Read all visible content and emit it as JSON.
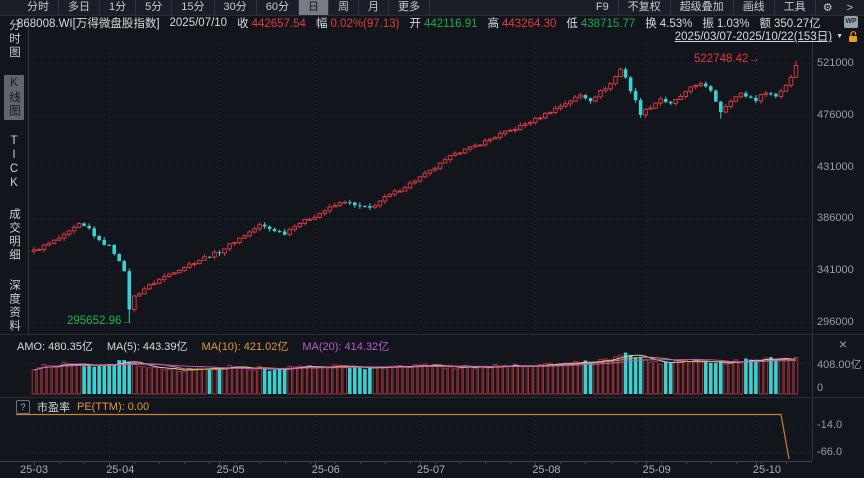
{
  "toolbar": {
    "left_items": [
      {
        "label": "分时",
        "selected": false
      },
      {
        "label": "多日",
        "selected": false
      },
      {
        "label": "1分",
        "selected": false
      },
      {
        "label": "5分",
        "selected": false
      },
      {
        "label": "15分",
        "selected": false
      },
      {
        "label": "30分",
        "selected": false
      },
      {
        "label": "60分",
        "selected": false
      },
      {
        "label": "日",
        "selected": true
      },
      {
        "label": "周",
        "selected": false
      },
      {
        "label": "月",
        "selected": false
      },
      {
        "label": "更多",
        "selected": false
      }
    ],
    "right_items": [
      "F9",
      "不复权",
      "超级叠加",
      "画线",
      "工具"
    ],
    "gear_icon": "⚙",
    "more_icon": ">"
  },
  "info_bar": {
    "symbol": "868008.WI[万得微盘股指数]",
    "date": "2025/07/10",
    "fields": [
      {
        "label": "收",
        "value": "442657.54",
        "color": "#e23b3e"
      },
      {
        "label": "幅",
        "value": "0.02%(97.13)",
        "color": "#e23b3e"
      },
      {
        "label": "开",
        "value": "442116.91",
        "color": "#21a94f"
      },
      {
        "label": "高",
        "value": "443264.30",
        "color": "#e23b3e"
      },
      {
        "label": "低",
        "value": "438715.77",
        "color": "#21a94f"
      },
      {
        "label": "换",
        "value": "4.53%",
        "color": "#d6d9de"
      },
      {
        "label": "振",
        "value": "1.03%",
        "color": "#d6d9de"
      },
      {
        "label": "额",
        "value": "350.27亿",
        "color": "#d6d9de"
      }
    ],
    "doc_icon_text": "WP"
  },
  "sidebar": {
    "items": [
      {
        "label": "分时图",
        "selected": false
      },
      {
        "label": "K线图",
        "selected": true
      },
      {
        "label": "TICK",
        "selected": false
      },
      {
        "label": "成交明细",
        "selected": false
      },
      {
        "label": "深度资料",
        "selected": false
      }
    ]
  },
  "date_range": {
    "text": "2025/03/07-2025/10/22(153日)",
    "dropdown_icon": "▼"
  },
  "chart_data": {
    "type": "candlestick",
    "title": "868008.WI 万得微盘股指数 日K线",
    "date_range": "2025/03/07-2025/10/22",
    "num_days": 153,
    "y_ticks": [
      521000,
      476000,
      431000,
      386000,
      341000,
      296000
    ],
    "ylim": [
      293000,
      524000
    ],
    "max_price_label": "522748.42",
    "min_price_label": "295652.96",
    "max_price": 522748.42,
    "min_price": 295652.96,
    "arrow": "→",
    "x_ticks": [
      {
        "label": "25-03",
        "day": 0
      },
      {
        "label": "25-04",
        "day": 15
      },
      {
        "label": "25-05",
        "day": 37
      },
      {
        "label": "25-06",
        "day": 56
      },
      {
        "label": "25-07",
        "day": 77
      },
      {
        "label": "25-08",
        "day": 100
      },
      {
        "label": "25-09",
        "day": 122
      },
      {
        "label": "25-10",
        "day": 144
      }
    ],
    "close_anchors": [
      [
        0,
        358000
      ],
      [
        3,
        364000
      ],
      [
        6,
        371000
      ],
      [
        9,
        380500
      ],
      [
        11,
        377000
      ],
      [
        13,
        366000
      ],
      [
        15,
        362000
      ],
      [
        17,
        350000
      ],
      [
        18,
        339000
      ],
      [
        19,
        307000
      ],
      [
        20,
        318000
      ],
      [
        22,
        325000
      ],
      [
        25,
        333000
      ],
      [
        28,
        340000
      ],
      [
        31,
        346000
      ],
      [
        34,
        352000
      ],
      [
        37,
        357000
      ],
      [
        40,
        366000
      ],
      [
        43,
        374000
      ],
      [
        45,
        380000
      ],
      [
        47,
        377000
      ],
      [
        50,
        373000
      ],
      [
        52,
        380000
      ],
      [
        56,
        388000
      ],
      [
        59,
        395000
      ],
      [
        62,
        401000
      ],
      [
        64,
        397000
      ],
      [
        67,
        395000
      ],
      [
        70,
        404000
      ],
      [
        73,
        411000
      ],
      [
        76,
        419000
      ],
      [
        79,
        427000
      ],
      [
        82,
        436000
      ],
      [
        84,
        442657.54
      ],
      [
        87,
        447000
      ],
      [
        90,
        453000
      ],
      [
        93,
        459000
      ],
      [
        96,
        464000
      ],
      [
        100,
        472000
      ],
      [
        103,
        479000
      ],
      [
        106,
        486000
      ],
      [
        109,
        493000
      ],
      [
        111,
        489000
      ],
      [
        113,
        496000
      ],
      [
        115,
        503000
      ],
      [
        117,
        515500
      ],
      [
        118,
        509000
      ],
      [
        119,
        497000
      ],
      [
        120,
        488000
      ],
      [
        121,
        477000
      ],
      [
        123,
        483000
      ],
      [
        125,
        490000
      ],
      [
        127,
        485000
      ],
      [
        129,
        492000
      ],
      [
        131,
        499000
      ],
      [
        133,
        504000
      ],
      [
        135,
        496000
      ],
      [
        136,
        488000
      ],
      [
        137,
        479000
      ],
      [
        139,
        489000
      ],
      [
        141,
        494000
      ],
      [
        144,
        489000
      ],
      [
        146,
        496000
      ],
      [
        148,
        492000
      ],
      [
        150,
        502000
      ],
      [
        151,
        509000
      ],
      [
        152,
        518900
      ]
    ],
    "volume_anchors": [
      [
        0,
        340
      ],
      [
        4,
        380
      ],
      [
        7,
        405
      ],
      [
        10,
        375
      ],
      [
        14,
        395
      ],
      [
        18,
        440
      ],
      [
        20,
        385
      ],
      [
        24,
        330
      ],
      [
        28,
        310
      ],
      [
        32,
        330
      ],
      [
        36,
        350
      ],
      [
        40,
        360
      ],
      [
        44,
        340
      ],
      [
        48,
        330
      ],
      [
        52,
        350
      ],
      [
        56,
        360
      ],
      [
        60,
        368
      ],
      [
        64,
        340
      ],
      [
        68,
        330
      ],
      [
        72,
        350
      ],
      [
        76,
        368
      ],
      [
        80,
        378
      ],
      [
        84,
        350
      ],
      [
        88,
        360
      ],
      [
        92,
        370
      ],
      [
        96,
        378
      ],
      [
        100,
        388
      ],
      [
        104,
        398
      ],
      [
        108,
        418
      ],
      [
        112,
        438
      ],
      [
        115,
        468
      ],
      [
        118,
        545
      ],
      [
        120,
        498
      ],
      [
        122,
        432
      ],
      [
        125,
        410
      ],
      [
        128,
        430
      ],
      [
        131,
        448
      ],
      [
        134,
        428
      ],
      [
        137,
        408
      ],
      [
        140,
        428
      ],
      [
        143,
        448
      ],
      [
        146,
        468
      ],
      [
        149,
        445
      ],
      [
        152,
        480.35
      ]
    ],
    "volume_axis_max": 408,
    "pe_flat_value": 0.0,
    "pe_drop_day": 149
  },
  "volume_panel": {
    "header": [
      {
        "text": "AMO: 480.35亿",
        "color": "#d6d9de"
      },
      {
        "text": "MA(5): 443.39亿",
        "color": "#d6d9de"
      },
      {
        "text": "MA(10): 421.02亿",
        "color": "#e0973c"
      },
      {
        "text": "MA(20): 414.32亿",
        "color": "#bb5cc8"
      }
    ],
    "axis_max_label": "408.00亿",
    "axis_zero_label": "0",
    "close_icon": "×"
  },
  "pe_panel": {
    "help_icon": "?",
    "title": "市盈率",
    "value_label": "PE(TTM): 0.00",
    "axis_labels": [
      {
        "text": "-14.0",
        "y": 419
      },
      {
        "text": "-66.0",
        "y": 446
      }
    ]
  },
  "colors": {
    "up": "#cf3a3e",
    "down": "#3bd0d0",
    "vol_up_stroke": "#a03338",
    "ma5": "#cdd1d6",
    "ma10": "#e0973c",
    "ma20": "#bb5cc8",
    "pe_line": "#c9832d",
    "max_label": "#e23b3e",
    "min_label": "#19b356",
    "grid": "#262b34",
    "border": "#2e333c",
    "bg": "#12151c"
  }
}
